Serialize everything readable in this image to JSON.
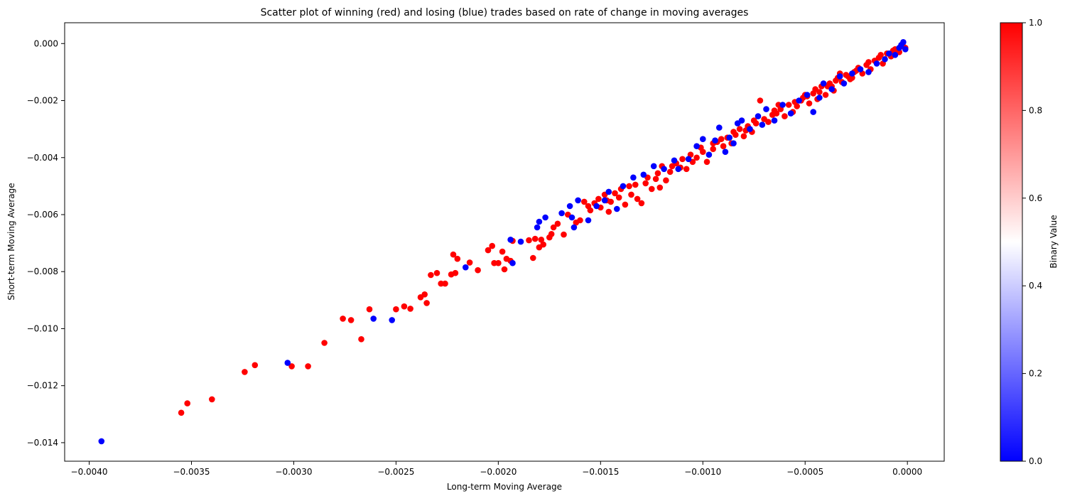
{
  "chart_data": {
    "type": "scatter",
    "title": "Scatter plot of winning (red) and losing (blue) trades based on rate of change in moving averages",
    "xlabel": "Long-term Moving Average",
    "ylabel": "Short-term Moving Average",
    "xlim": [
      -0.00412,
      0.00018
    ],
    "ylim": [
      -0.01465,
      0.00073
    ],
    "x_ticks": [
      -0.004,
      -0.0035,
      -0.003,
      -0.0025,
      -0.002,
      -0.0015,
      -0.001,
      -0.0005,
      0.0
    ],
    "x_tick_labels": [
      "−0.0040",
      "−0.0035",
      "−0.0030",
      "−0.0025",
      "−0.0020",
      "−0.0015",
      "−0.0010",
      "−0.0005",
      "0.0000"
    ],
    "y_ticks": [
      0.0,
      -0.002,
      -0.004,
      -0.006,
      -0.008,
      -0.01,
      -0.012,
      -0.014
    ],
    "y_tick_labels": [
      "0.000",
      "−0.002",
      "−0.004",
      "−0.006",
      "−0.008",
      "−0.010",
      "−0.012",
      "−0.014"
    ],
    "grid": false,
    "colorbar": {
      "label": "Binary Value",
      "range": [
        0,
        1
      ],
      "ticks": [
        0.0,
        0.2,
        0.4,
        0.6,
        0.8,
        1.0
      ],
      "tick_labels": [
        "0.0",
        "0.2",
        "0.4",
        "0.6",
        "0.8",
        "1.0"
      ],
      "colormap": "bwr",
      "colors": [
        "#0000ff",
        "#ffffff",
        "#ff0000"
      ]
    },
    "series": [
      {
        "color": "#ff0000",
        "value": 1,
        "points": [
          [
            -0.00355,
            -0.01295
          ],
          [
            -0.00352,
            -0.01262
          ],
          [
            -0.0034,
            -0.01248
          ],
          [
            -0.00324,
            -0.01152
          ],
          [
            -0.00319,
            -0.01128
          ],
          [
            -0.00301,
            -0.01132
          ],
          [
            -0.00293,
            -0.01132
          ],
          [
            -0.00285,
            -0.0105
          ],
          [
            -0.00276,
            -0.00965
          ],
          [
            -0.00272,
            -0.0097
          ],
          [
            -0.00267,
            -0.01037
          ],
          [
            -0.00263,
            -0.00932
          ],
          [
            -0.0025,
            -0.00932
          ],
          [
            -0.00246,
            -0.00922
          ],
          [
            -0.00243,
            -0.0093
          ],
          [
            -0.00238,
            -0.0089
          ],
          [
            -0.00236,
            -0.0088
          ],
          [
            -0.00235,
            -0.0091
          ],
          [
            -0.00233,
            -0.00812
          ],
          [
            -0.0023,
            -0.00805
          ],
          [
            -0.00228,
            -0.00842
          ],
          [
            -0.00226,
            -0.00842
          ],
          [
            -0.00223,
            -0.0081
          ],
          [
            -0.00221,
            -0.00805
          ],
          [
            -0.00222,
            -0.0074
          ],
          [
            -0.0022,
            -0.00755
          ],
          [
            -0.00214,
            -0.00768
          ],
          [
            -0.0021,
            -0.00795
          ],
          [
            -0.00205,
            -0.00725
          ],
          [
            -0.00203,
            -0.0071
          ],
          [
            -0.00202,
            -0.0077
          ],
          [
            -0.002,
            -0.0077
          ],
          [
            -0.00198,
            -0.0073
          ],
          [
            -0.00197,
            -0.00792
          ],
          [
            -0.00196,
            -0.00755
          ],
          [
            -0.00194,
            -0.00762
          ],
          [
            -0.00193,
            -0.00692
          ],
          [
            -0.00185,
            -0.0069
          ],
          [
            -0.00183,
            -0.00752
          ],
          [
            -0.00182,
            -0.00685
          ],
          [
            -0.0018,
            -0.00715
          ],
          [
            -0.00179,
            -0.00688
          ],
          [
            -0.00178,
            -0.00705
          ],
          [
            -0.00175,
            -0.0068
          ],
          [
            -0.00174,
            -0.00668
          ],
          [
            -0.00173,
            -0.00645
          ],
          [
            -0.00171,
            -0.00632
          ],
          [
            -0.00168,
            -0.0067
          ],
          [
            -0.00166,
            -0.006
          ],
          [
            -0.00162,
            -0.00628
          ],
          [
            -0.0016,
            -0.0062
          ],
          [
            -0.00158,
            -0.00555
          ],
          [
            -0.00156,
            -0.0057
          ],
          [
            -0.00155,
            -0.00585
          ],
          [
            -0.00153,
            -0.0056
          ],
          [
            -0.00151,
            -0.00545
          ],
          [
            -0.0015,
            -0.00575
          ],
          [
            -0.00148,
            -0.0053
          ],
          [
            -0.00146,
            -0.0059
          ],
          [
            -0.00145,
            -0.00555
          ],
          [
            -0.00143,
            -0.00525
          ],
          [
            -0.00141,
            -0.0054
          ],
          [
            -0.0014,
            -0.0051
          ],
          [
            -0.00138,
            -0.00565
          ],
          [
            -0.00135,
            -0.0053
          ],
          [
            -0.00133,
            -0.00495
          ],
          [
            -0.00132,
            -0.00545
          ],
          [
            -0.0013,
            -0.0056
          ],
          [
            -0.00128,
            -0.0049
          ],
          [
            -0.00125,
            -0.0051
          ],
          [
            -0.00123,
            -0.00475
          ],
          [
            -0.00121,
            -0.00505
          ],
          [
            -0.0012,
            -0.0043
          ],
          [
            -0.00118,
            -0.0048
          ],
          [
            -0.00116,
            -0.0045
          ],
          [
            -0.00113,
            -0.0042
          ],
          [
            -0.00111,
            -0.00435
          ],
          [
            -0.00108,
            -0.0044
          ],
          [
            -0.00106,
            -0.0039
          ],
          [
            -0.00105,
            -0.00415
          ],
          [
            -0.00103,
            -0.004
          ],
          [
            -0.001,
            -0.0038
          ],
          [
            -0.00098,
            -0.00415
          ],
          [
            -0.00095,
            -0.0037
          ],
          [
            -0.00093,
            -0.00345
          ],
          [
            -0.0009,
            -0.0036
          ],
          [
            -0.00088,
            -0.0033
          ],
          [
            -0.00086,
            -0.0035
          ],
          [
            -0.00084,
            -0.0032
          ],
          [
            -0.00082,
            -0.003
          ],
          [
            -0.0008,
            -0.00325
          ],
          [
            -0.00078,
            -0.0029
          ],
          [
            -0.00076,
            -0.0031
          ],
          [
            -0.00074,
            -0.0028
          ],
          [
            -0.00072,
            -0.002
          ],
          [
            -0.0007,
            -0.00265
          ],
          [
            -0.00068,
            -0.00275
          ],
          [
            -0.00066,
            -0.0025
          ],
          [
            -0.00064,
            -0.00245
          ],
          [
            -0.00062,
            -0.0023
          ],
          [
            -0.0006,
            -0.00255
          ],
          [
            -0.00058,
            -0.00215
          ],
          [
            -0.00056,
            -0.0024
          ],
          [
            -0.00054,
            -0.0022
          ],
          [
            -0.00052,
            -0.002
          ],
          [
            -0.0005,
            -0.0018
          ],
          [
            -0.00048,
            -0.0021
          ],
          [
            -0.00046,
            -0.00175
          ],
          [
            -0.00044,
            -0.00195
          ],
          [
            -0.00042,
            -0.0015
          ],
          [
            -0.0004,
            -0.0018
          ],
          [
            -0.00038,
            -0.0014
          ],
          [
            -0.00036,
            -0.00165
          ],
          [
            -0.00034,
            -0.0012
          ],
          [
            -0.00032,
            -0.00135
          ],
          [
            -0.0003,
            -0.0011
          ],
          [
            -0.00028,
            -0.00125
          ],
          [
            -0.00026,
            -0.001
          ],
          [
            -0.00024,
            -0.00085
          ],
          [
            -0.00022,
            -0.00105
          ],
          [
            -0.0002,
            -0.00075
          ],
          [
            -0.00018,
            -0.0009
          ],
          [
            -0.00016,
            -0.0006
          ],
          [
            -0.00014,
            -0.0005
          ],
          [
            -0.00012,
            -0.0007
          ],
          [
            -0.0001,
            -0.00035
          ],
          [
            -8e-05,
            -0.00045
          ],
          [
            -6e-05,
            -0.0002
          ],
          [
            -4e-05,
            -0.0003
          ],
          [
            -2e-05,
            -0.0001
          ],
          [
            -1e-05,
            -0.00015
          ],
          [
            -0.00025,
            -0.00095
          ],
          [
            -0.00035,
            -0.0013
          ],
          [
            -0.00045,
            -0.0016
          ],
          [
            -0.00055,
            -0.00205
          ],
          [
            -0.00065,
            -0.00235
          ],
          [
            -0.00075,
            -0.0027
          ],
          [
            -0.00085,
            -0.0031
          ],
          [
            -0.00095,
            -0.0035
          ],
          [
            -0.0011,
            -0.00405
          ],
          [
            -0.00122,
            -0.00455
          ],
          [
            -0.00136,
            -0.005
          ],
          [
            -0.00147,
            -0.0055
          ],
          [
            -0.00027,
            -0.0012
          ],
          [
            -0.00039,
            -0.0015
          ],
          [
            -0.00051,
            -0.0019
          ],
          [
            -0.00063,
            -0.00215
          ],
          [
            -0.00079,
            -0.00305
          ],
          [
            -0.00091,
            -0.00335
          ],
          [
            -0.00101,
            -0.00365
          ],
          [
            -0.00115,
            -0.0043
          ],
          [
            -0.00127,
            -0.0047
          ],
          [
            -7e-05,
            -0.00025
          ],
          [
            -0.00013,
            -0.0004
          ],
          [
            -0.00019,
            -0.00065
          ],
          [
            -0.00029,
            -0.00115
          ],
          [
            -0.00033,
            -0.00105
          ],
          [
            -0.00037,
            -0.0015
          ],
          [
            -0.00043,
            -0.0017
          ],
          [
            -0.00049,
            -0.00185
          ]
        ]
      },
      {
        "color": "#0000ff",
        "value": 0,
        "points": [
          [
            -0.00394,
            -0.01395
          ],
          [
            -0.00303,
            -0.0112
          ],
          [
            -0.00261,
            -0.00965
          ],
          [
            -0.00252,
            -0.0097
          ],
          [
            -0.00216,
            -0.00785
          ],
          [
            -0.00194,
            -0.00688
          ],
          [
            -0.00189,
            -0.00695
          ],
          [
            -0.00193,
            -0.0077
          ],
          [
            -0.0018,
            -0.00625
          ],
          [
            -0.00181,
            -0.00645
          ],
          [
            -0.00177,
            -0.0061
          ],
          [
            -0.00169,
            -0.00595
          ],
          [
            -0.00165,
            -0.0057
          ],
          [
            -0.00164,
            -0.0061
          ],
          [
            -0.00163,
            -0.00645
          ],
          [
            -0.00161,
            -0.0055
          ],
          [
            -0.00156,
            -0.0062
          ],
          [
            -0.00152,
            -0.0057
          ],
          [
            -0.00148,
            -0.0055
          ],
          [
            -0.00146,
            -0.0052
          ],
          [
            -0.00142,
            -0.0058
          ],
          [
            -0.00139,
            -0.005
          ],
          [
            -0.00134,
            -0.0047
          ],
          [
            -0.00129,
            -0.0046
          ],
          [
            -0.00124,
            -0.0043
          ],
          [
            -0.00119,
            -0.0044
          ],
          [
            -0.00114,
            -0.0041
          ],
          [
            -0.00112,
            -0.0044
          ],
          [
            -0.00107,
            -0.00405
          ],
          [
            -0.00103,
            -0.0036
          ],
          [
            -0.001,
            -0.00335
          ],
          [
            -0.00097,
            -0.0039
          ],
          [
            -0.00094,
            -0.0034
          ],
          [
            -0.00092,
            -0.00295
          ],
          [
            -0.00089,
            -0.0038
          ],
          [
            -0.00087,
            -0.0033
          ],
          [
            -0.00085,
            -0.0035
          ],
          [
            -0.00083,
            -0.0028
          ],
          [
            -0.00081,
            -0.0027
          ],
          [
            -0.00077,
            -0.003
          ],
          [
            -0.00073,
            -0.00255
          ],
          [
            -0.00071,
            -0.00285
          ],
          [
            -0.00069,
            -0.0023
          ],
          [
            -0.00065,
            -0.0027
          ],
          [
            -0.00061,
            -0.00215
          ],
          [
            -0.00057,
            -0.00245
          ],
          [
            -0.00053,
            -0.002
          ],
          [
            -0.00049,
            -0.0018
          ],
          [
            -0.00046,
            -0.0024
          ],
          [
            -0.00043,
            -0.0019
          ],
          [
            -0.00041,
            -0.0014
          ],
          [
            -0.00037,
            -0.0016
          ],
          [
            -0.00033,
            -0.00115
          ],
          [
            -0.00031,
            -0.0014
          ],
          [
            -0.00027,
            -0.00105
          ],
          [
            -0.00023,
            -0.0009
          ],
          [
            -0.00019,
            -0.001
          ],
          [
            -0.00015,
            -0.0007
          ],
          [
            -0.00011,
            -0.00055
          ],
          [
            -9e-05,
            -0.00035
          ],
          [
            -6e-05,
            -0.0004
          ],
          [
            -4e-05,
            -0.00015
          ],
          [
            -2e-05,
            5e-05
          ],
          [
            -1e-05,
            -0.0002
          ],
          [
            -3e-05,
            -5e-05
          ]
        ]
      }
    ]
  }
}
